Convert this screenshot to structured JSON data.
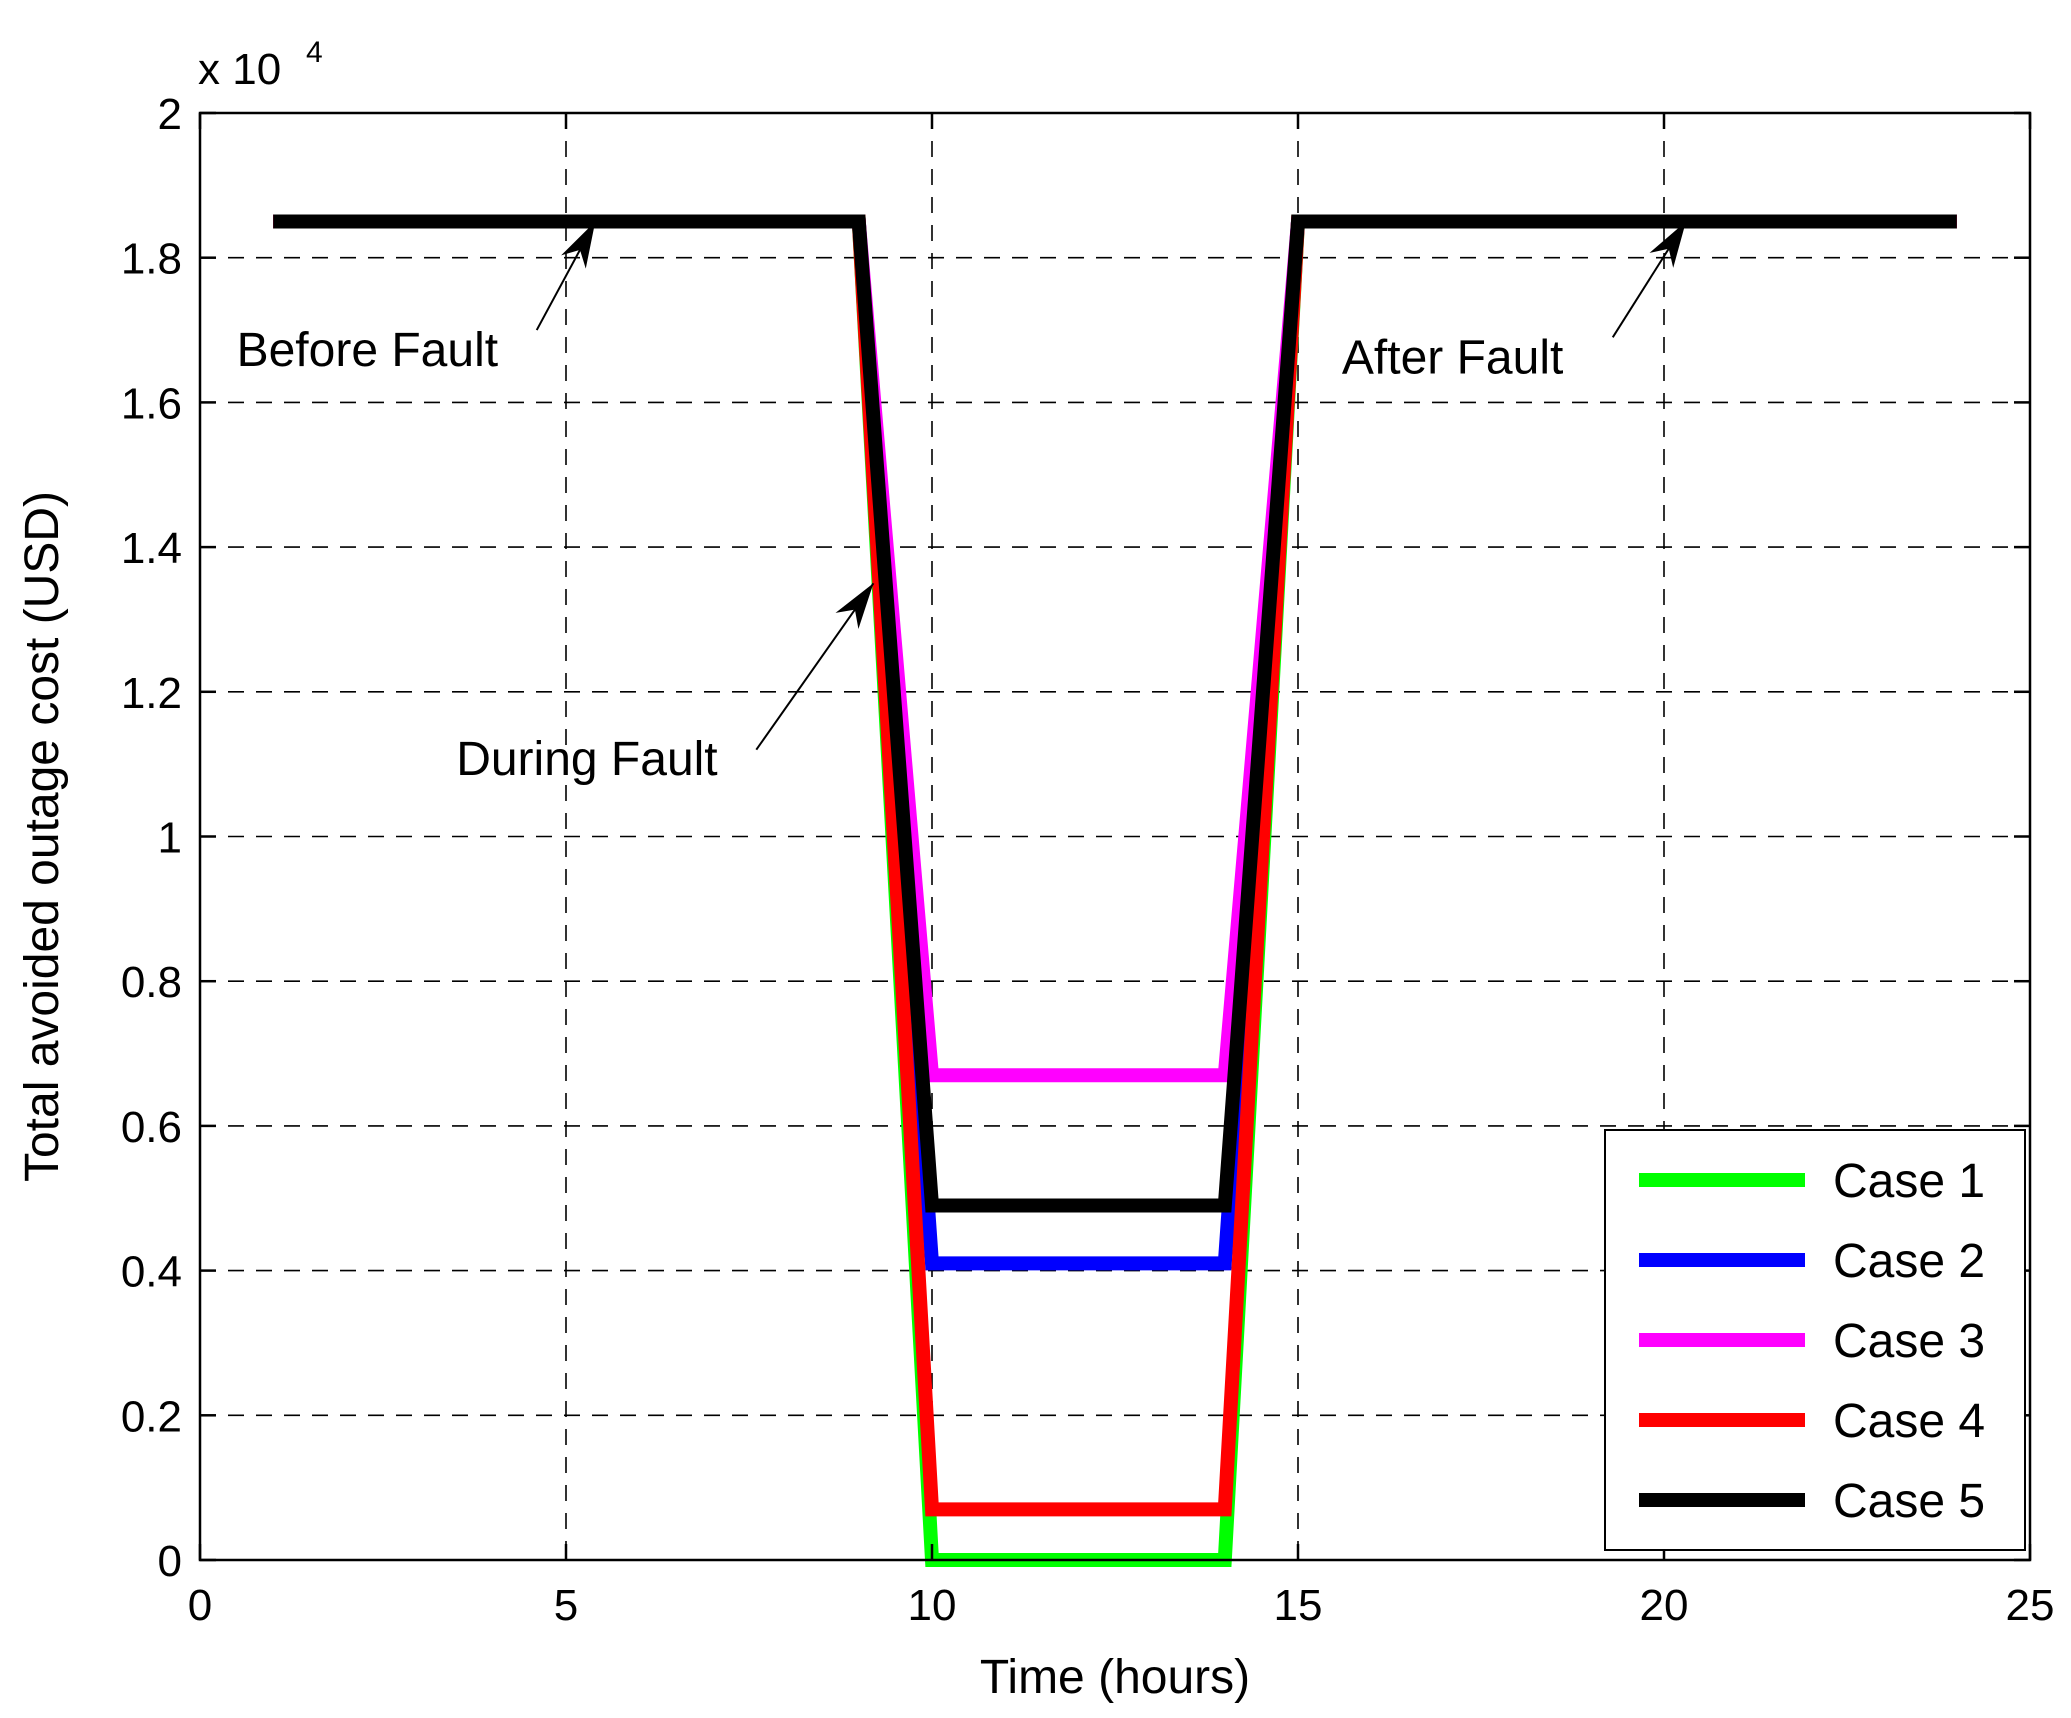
{
  "chart_data": {
    "type": "line",
    "xlabel": "Time (hours)",
    "ylabel": "Total avoided outage cost (USD)",
    "y_multiplier": "x 10",
    "y_multiplier_exp": "4",
    "xlim": [
      0,
      25
    ],
    "ylim": [
      0,
      20000
    ],
    "xticks": [
      0,
      5,
      10,
      15,
      20,
      25
    ],
    "yticks": [
      0,
      2000,
      4000,
      6000,
      8000,
      10000,
      12000,
      14000,
      16000,
      18000,
      20000
    ],
    "xtick_labels": [
      "0",
      "5",
      "10",
      "15",
      "20",
      "25"
    ],
    "ytick_labels": [
      "0",
      "0.2",
      "0.4",
      "0.6",
      "0.8",
      "1",
      "1.2",
      "1.4",
      "1.6",
      "1.8",
      "2"
    ],
    "grid": true,
    "legend_position": "bottom-right",
    "series": [
      {
        "name": "Case 1",
        "color": "#00ff00",
        "x": [
          1,
          9,
          10,
          14,
          15,
          24
        ],
        "y": [
          18500,
          18500,
          0,
          0,
          18500,
          18500
        ]
      },
      {
        "name": "Case 2",
        "color": "#0000ff",
        "x": [
          1,
          9,
          10,
          14,
          15,
          24
        ],
        "y": [
          18500,
          18500,
          4100,
          4100,
          18500,
          18500
        ]
      },
      {
        "name": "Case 3",
        "color": "#ff00ff",
        "x": [
          1,
          9,
          10,
          14,
          15,
          24
        ],
        "y": [
          18500,
          18500,
          6700,
          6700,
          18500,
          18500
        ]
      },
      {
        "name": "Case 4",
        "color": "#ff0000",
        "x": [
          1,
          9,
          10,
          14,
          15,
          24
        ],
        "y": [
          18500,
          18500,
          700,
          700,
          18500,
          18500
        ]
      },
      {
        "name": "Case 5",
        "color": "#000000",
        "x": [
          1,
          9,
          10,
          14,
          15,
          24
        ],
        "y": [
          18500,
          18500,
          4900,
          4900,
          18500,
          18500
        ]
      }
    ],
    "annotations": [
      {
        "text": "Before Fault",
        "tip": [
          5.4,
          18500
        ],
        "from": [
          4.6,
          17000
        ],
        "text_at": [
          0.5,
          16500
        ]
      },
      {
        "text": "During Fault",
        "tip": [
          9.2,
          13500
        ],
        "from": [
          7.6,
          11200
        ],
        "text_at": [
          3.5,
          10850
        ]
      },
      {
        "text": "After Fault",
        "tip": [
          20.3,
          18500
        ],
        "from": [
          19.3,
          16900
        ],
        "text_at": [
          15.6,
          16400
        ]
      }
    ]
  }
}
